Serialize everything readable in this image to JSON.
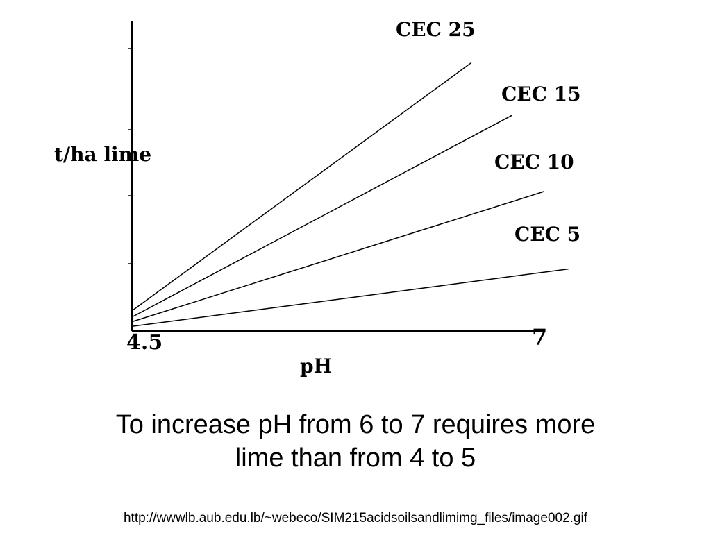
{
  "chart_data": {
    "type": "line",
    "title": "",
    "xlabel": "pH",
    "ylabel": "t/ha lime",
    "x_tick_labels": [
      "4.5",
      "7"
    ],
    "xlim": [
      4.5,
      7
    ],
    "ylim": [
      0,
      10
    ],
    "grid": false,
    "legend": "inline-labels",
    "series": [
      {
        "name": "CEC 25",
        "x": [
          4.5,
          6.6
        ],
        "y": [
          0.65,
          8.65
        ]
      },
      {
        "name": "CEC 15",
        "x": [
          4.5,
          6.85
        ],
        "y": [
          0.45,
          6.95
        ]
      },
      {
        "name": "CEC 10",
        "x": [
          4.5,
          7.05
        ],
        "y": [
          0.3,
          4.5
        ]
      },
      {
        "name": "CEC 5",
        "x": [
          4.5,
          7.2
        ],
        "y": [
          0.15,
          2.0
        ]
      }
    ]
  },
  "caption": {
    "line1": "To increase pH from 6 to 7 requires more",
    "line2": "lime than from 4 to 5"
  },
  "source_url": "http://wwwlb.aub.edu.lb/~webeco/SIM215acidsoilsandlimimg_files/image002.gif"
}
